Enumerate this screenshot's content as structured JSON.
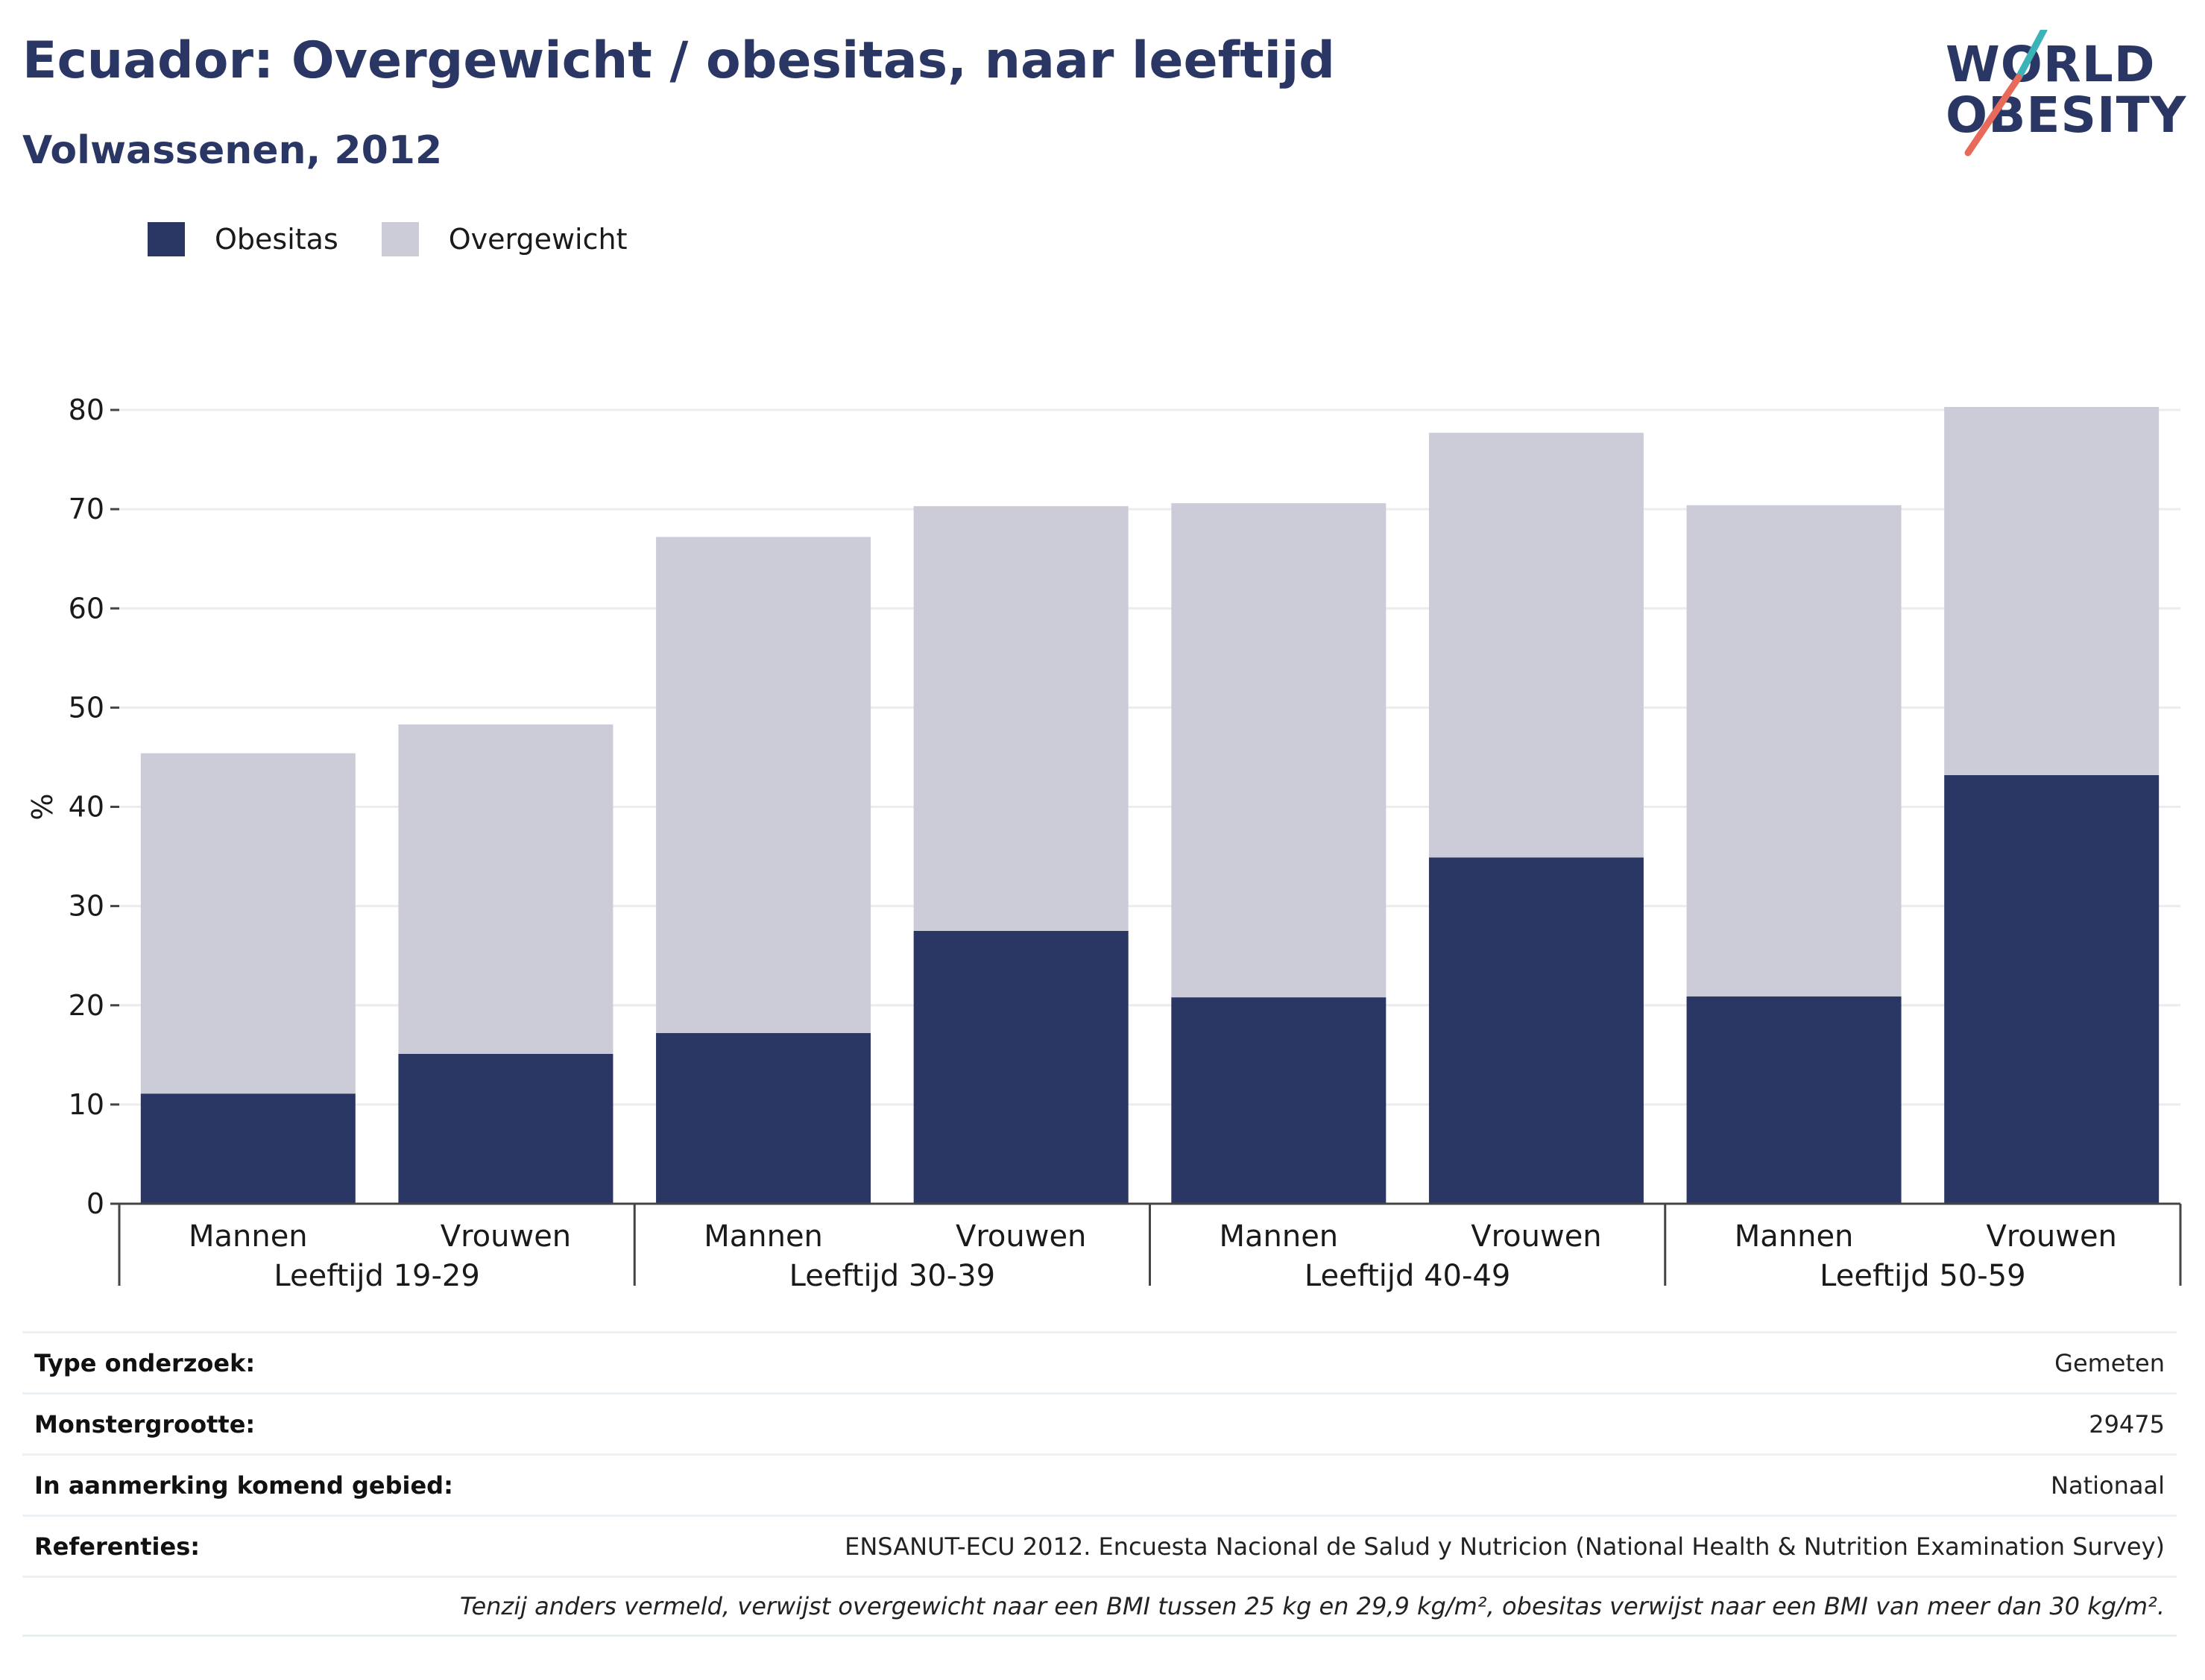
{
  "header": {
    "title": "Ecuador: Overgewicht / obesitas, naar leeftijd",
    "subtitle": "Volwassenen, 2012"
  },
  "logo": {
    "line1": "WORLD",
    "line2": "OBESITY",
    "colors": {
      "text": "#2a3664",
      "slash_top": "#3bb3b8",
      "slash_bottom": "#e86a5a"
    }
  },
  "colors": {
    "obesitas": "#2a3664",
    "overgewicht": "#cbccd8",
    "grid": "#ececec",
    "axis": "#444444"
  },
  "chart_data": {
    "type": "bar",
    "stacked": true,
    "categories": [
      "Mannen",
      "Vrouwen",
      "Mannen",
      "Vrouwen",
      "Mannen",
      "Vrouwen",
      "Mannen",
      "Vrouwen"
    ],
    "groups": [
      "Leeftijd 19-29",
      "Leeftijd 30-39",
      "Leeftijd 40-49",
      "Leeftijd 50-59"
    ],
    "series": [
      {
        "name": "Obesitas",
        "values": [
          11.1,
          15.1,
          17.2,
          27.5,
          20.8,
          34.9,
          20.9,
          43.2
        ]
      },
      {
        "name": "Overgewicht",
        "values": [
          34.3,
          33.2,
          50.0,
          42.8,
          49.8,
          42.8,
          49.5,
          37.1
        ]
      }
    ],
    "legend_position": "top-left",
    "ylabel": "%",
    "ylim": [
      0,
      80
    ],
    "yticks": [
      "0",
      "10",
      "20",
      "30",
      "40",
      "50",
      "60",
      "70",
      "80"
    ],
    "grid": true
  },
  "info": {
    "rows": [
      {
        "key": "Type onderzoek:",
        "value": "Gemeten"
      },
      {
        "key": "Monstergrootte:",
        "value": "29475"
      },
      {
        "key": "In aanmerking komend gebied:",
        "value": "Nationaal"
      },
      {
        "key": "Referenties:",
        "value": "ENSANUT-ECU 2012. Encuesta Nacional de Salud y Nutricion (National Health & Nutrition Examination Survey)"
      }
    ],
    "note": "Tenzij anders vermeld, verwijst overgewicht naar een BMI tussen 25 kg en 29,9 kg/m², obesitas verwijst naar een BMI van meer dan 30 kg/m²."
  }
}
